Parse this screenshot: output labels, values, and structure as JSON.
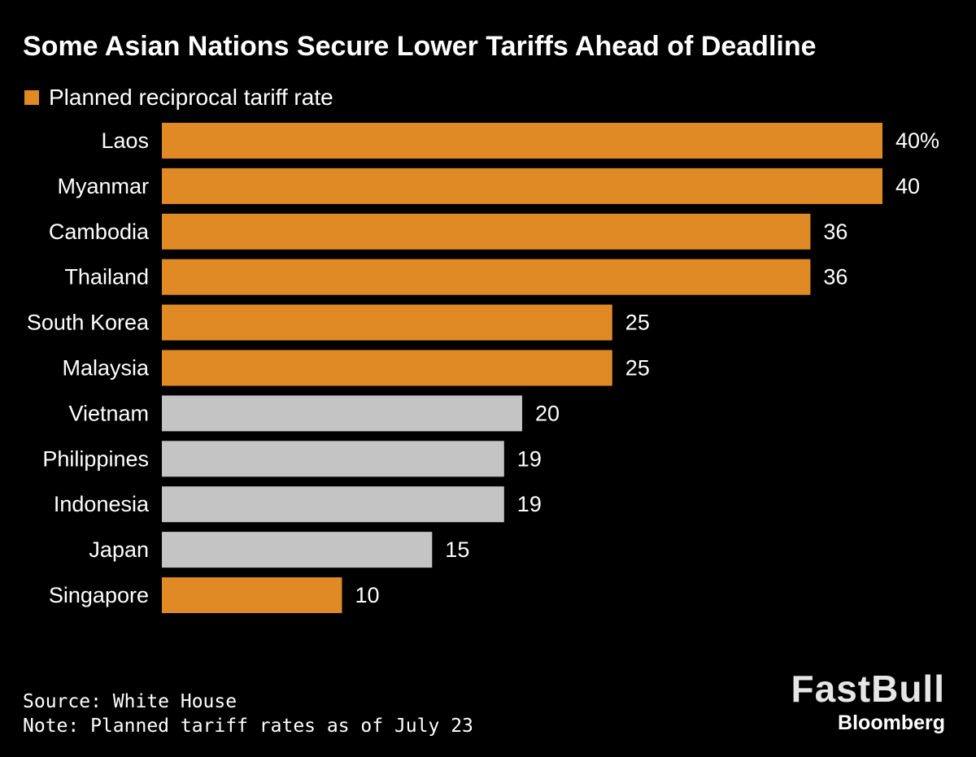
{
  "chart_data": {
    "type": "bar",
    "orientation": "horizontal",
    "title": "Some Asian Nations Secure Lower Tariffs Ahead of Deadline",
    "legend": [
      {
        "name": "Planned reciprocal tariff rate",
        "color": "#E08A26"
      }
    ],
    "legend_position": "top-left",
    "categories": [
      "Laos",
      "Myanmar",
      "Cambodia",
      "Thailand",
      "South Korea",
      "Malaysia",
      "Vietnam",
      "Philippines",
      "Indonesia",
      "Japan",
      "Singapore"
    ],
    "values": [
      40,
      40,
      36,
      36,
      25,
      25,
      20,
      19,
      19,
      15,
      10
    ],
    "value_labels": [
      "40%",
      "40",
      "36",
      "36",
      "25",
      "25",
      "20",
      "19",
      "19",
      "15",
      "10"
    ],
    "bar_colors": [
      "#E08A26",
      "#E08A26",
      "#E08A26",
      "#E08A26",
      "#E08A26",
      "#E08A26",
      "#C4C4C4",
      "#C4C4C4",
      "#C4C4C4",
      "#C4C4C4",
      "#E08A26"
    ],
    "xlim": [
      0,
      40
    ],
    "grid": false,
    "background": "#000000"
  },
  "footnotes": {
    "source": "Source: White House",
    "note": "Note: Planned tariff rates as of July 23"
  },
  "logo": {
    "main": "FastBull",
    "sub": "Bloomberg"
  }
}
